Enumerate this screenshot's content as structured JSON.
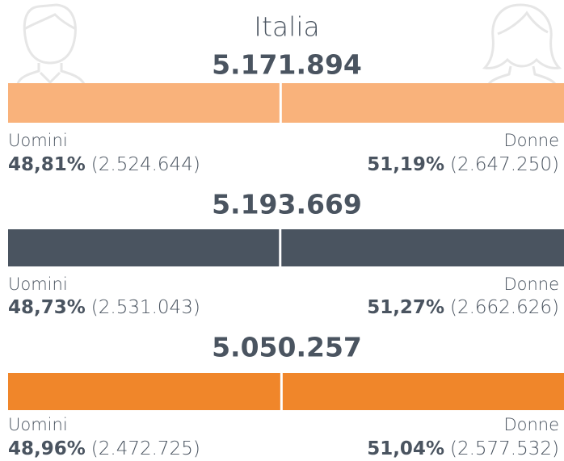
{
  "heading": "Italia",
  "chart_data": [
    {
      "type": "split-bar",
      "title": "5.171.894",
      "color": "#f9b27b",
      "categories": [
        "Uomini",
        "Donne"
      ],
      "values": [
        48.81,
        51.19
      ],
      "value_labels": [
        "48,81%",
        "51,19%"
      ],
      "count_labels": [
        "(2.524.644)",
        "(2.647.250)"
      ]
    },
    {
      "type": "split-bar",
      "title": "5.193.669",
      "color": "#4a5460",
      "categories": [
        "Uomini",
        "Donne"
      ],
      "values": [
        48.73,
        51.27
      ],
      "value_labels": [
        "48,73%",
        "51,27%"
      ],
      "count_labels": [
        "(2.531.043)",
        "(2.662.626)"
      ]
    },
    {
      "type": "split-bar",
      "title": "5.050.257",
      "color": "#f0862a",
      "categories": [
        "Uomini",
        "Donne"
      ],
      "values": [
        48.96,
        51.04
      ],
      "value_labels": [
        "48,96%",
        "51,04%"
      ],
      "count_labels": [
        "(2.472.725)",
        "(2.577.532)"
      ]
    }
  ]
}
